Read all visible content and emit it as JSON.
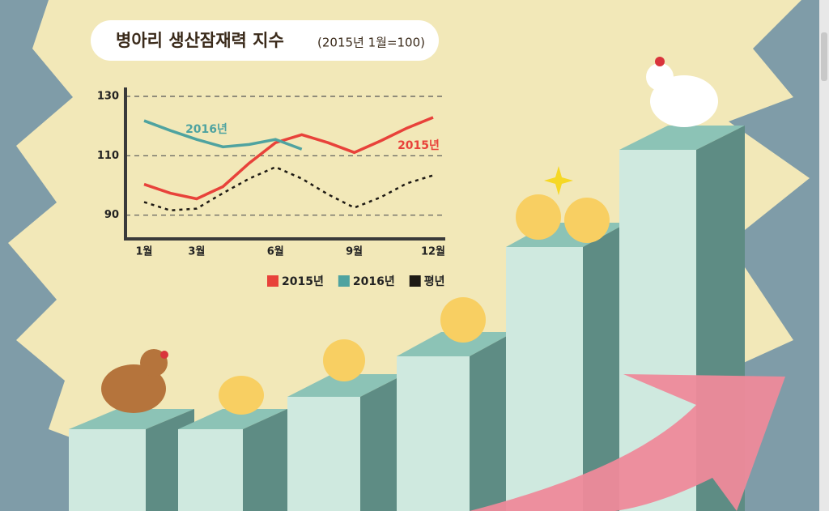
{
  "chart_data": {
    "type": "line",
    "title": "병아리 생산잠재력 지수",
    "subtitle": "(2015년 1월=100)",
    "categories": [
      "1월",
      null,
      "3월",
      null,
      null,
      "6월",
      null,
      null,
      "9월",
      null,
      null,
      "12월"
    ],
    "series": [
      {
        "name": "2015년",
        "color": "#e8423a",
        "style": "solid",
        "values": [
          100.4,
          97.4,
          95.5,
          99.6,
          107.5,
          114.4,
          117.1,
          114.4,
          111.1,
          115,
          119.3,
          122.9
        ]
      },
      {
        "name": "2016년",
        "color": "#4fa3a0",
        "style": "solid",
        "values": [
          121.8,
          118.5,
          115.5,
          113,
          113.8,
          115.5,
          112.2,
          null,
          null,
          null,
          null,
          null
        ]
      },
      {
        "name": "평년",
        "color": "#1e1a14",
        "style": "dotted",
        "values": [
          94.4,
          91.6,
          92.2,
          97.4,
          102.3,
          106.2,
          102.3,
          97,
          92.5,
          96,
          100.7,
          103.4
        ]
      }
    ],
    "ylim": [
      82,
      133
    ],
    "yticks": [
      90,
      110,
      130
    ],
    "grid": true
  }
}
